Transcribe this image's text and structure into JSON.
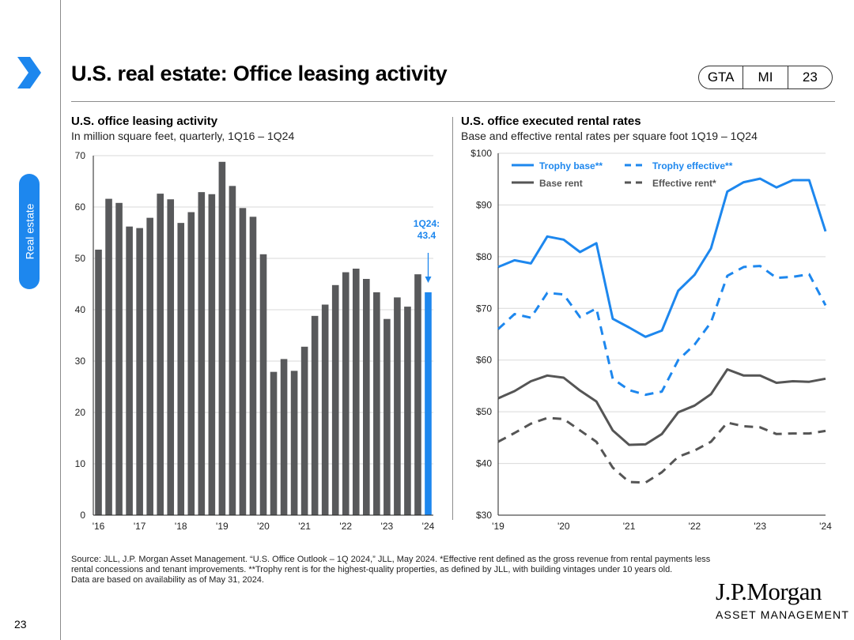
{
  "page": {
    "number": "23",
    "section_tab": "Real estate",
    "title": "U.S. real estate: Office leasing activity",
    "pill": [
      "GTA",
      "MI",
      "23"
    ]
  },
  "colors": {
    "accent": "#1d87ee",
    "bar": "#58595b",
    "dark": "#555555"
  },
  "footnote": {
    "text": "Source: JLL, J.P. Morgan Asset Management. “U.S. Office Outlook – 1Q 2024,” JLL, May 2024. *Effective rent defined as the gross revenue from rental payments less rental concessions and tenant improvements. **Trophy rent is for the highest-quality properties, as defined by JLL, with building vintages under 10 years old.",
    "date": "Data are based on availability as of May 31, 2024."
  },
  "logo": {
    "line1": "J.P.Morgan",
    "line2": "ASSET MANAGEMENT"
  },
  "chart_data": [
    {
      "type": "bar",
      "title": "U.S. office leasing activity",
      "subtitle": "In million square feet, quarterly, 1Q16 – 1Q24",
      "ylim": [
        0,
        70
      ],
      "yticks": [
        0,
        10,
        20,
        30,
        40,
        50,
        60,
        70
      ],
      "xtick_labels": [
        "'16",
        "'17",
        "'18",
        "'19",
        "'20",
        "'21",
        "'22",
        "'23",
        "'24"
      ],
      "values": [
        51.7,
        61.6,
        60.8,
        56.2,
        55.9,
        57.9,
        62.6,
        61.5,
        56.9,
        59.0,
        62.9,
        62.5,
        68.8,
        64.1,
        59.8,
        58.1,
        50.8,
        27.9,
        30.4,
        28.1,
        32.8,
        38.8,
        41.0,
        44.8,
        47.3,
        48.0,
        46.0,
        43.4,
        38.2,
        42.4,
        40.6,
        46.9,
        43.4
      ],
      "highlight_last": true,
      "annotation": {
        "line1": "1Q24:",
        "line2": "43.4"
      }
    },
    {
      "type": "line",
      "title": "U.S. office executed rental rates",
      "subtitle": "Base and effective rental rates per square foot 1Q19 – 1Q24",
      "ylim": [
        30,
        100
      ],
      "yticks": [
        30,
        40,
        50,
        60,
        70,
        80,
        90,
        100
      ],
      "ytick_labels": [
        "$30",
        "$40",
        "$50",
        "$60",
        "$70",
        "$80",
        "$90",
        "$100"
      ],
      "xtick_labels": [
        "'19",
        "'20",
        "'21",
        "'22",
        "'23",
        "'24"
      ],
      "series": [
        {
          "name": "Trophy base**",
          "style": "solid",
          "color": "#1d87ee",
          "values": [
            78.0,
            79.3,
            78.7,
            83.9,
            83.3,
            80.9,
            82.6,
            68.0,
            66.3,
            64.5,
            65.7,
            73.4,
            76.5,
            81.6,
            92.6,
            94.4,
            95.1,
            93.4,
            94.8,
            94.8,
            84.9
          ]
        },
        {
          "name": "Trophy effective**",
          "style": "dashed",
          "color": "#1d87ee",
          "values": [
            66.0,
            68.9,
            68.2,
            73.0,
            72.7,
            68.3,
            70.0,
            56.4,
            54.2,
            53.3,
            53.9,
            60.0,
            63.0,
            67.3,
            76.3,
            78.0,
            78.2,
            75.9,
            76.1,
            76.6,
            70.6
          ]
        },
        {
          "name": "Base rent",
          "style": "solid",
          "color": "#555555",
          "values": [
            52.6,
            54.0,
            55.9,
            57.0,
            56.6,
            54.1,
            52.0,
            46.4,
            43.6,
            43.7,
            45.7,
            49.9,
            51.2,
            53.4,
            58.2,
            57.0,
            57.0,
            55.6,
            55.9,
            55.8,
            56.4
          ]
        },
        {
          "name": "Effective rent*",
          "style": "dashed",
          "color": "#555555",
          "values": [
            44.2,
            45.9,
            47.7,
            48.8,
            48.6,
            46.4,
            44.2,
            39.2,
            36.4,
            36.3,
            38.3,
            41.3,
            42.5,
            44.2,
            47.9,
            47.2,
            47.0,
            45.7,
            45.8,
            45.8,
            46.3
          ]
        }
      ]
    }
  ]
}
